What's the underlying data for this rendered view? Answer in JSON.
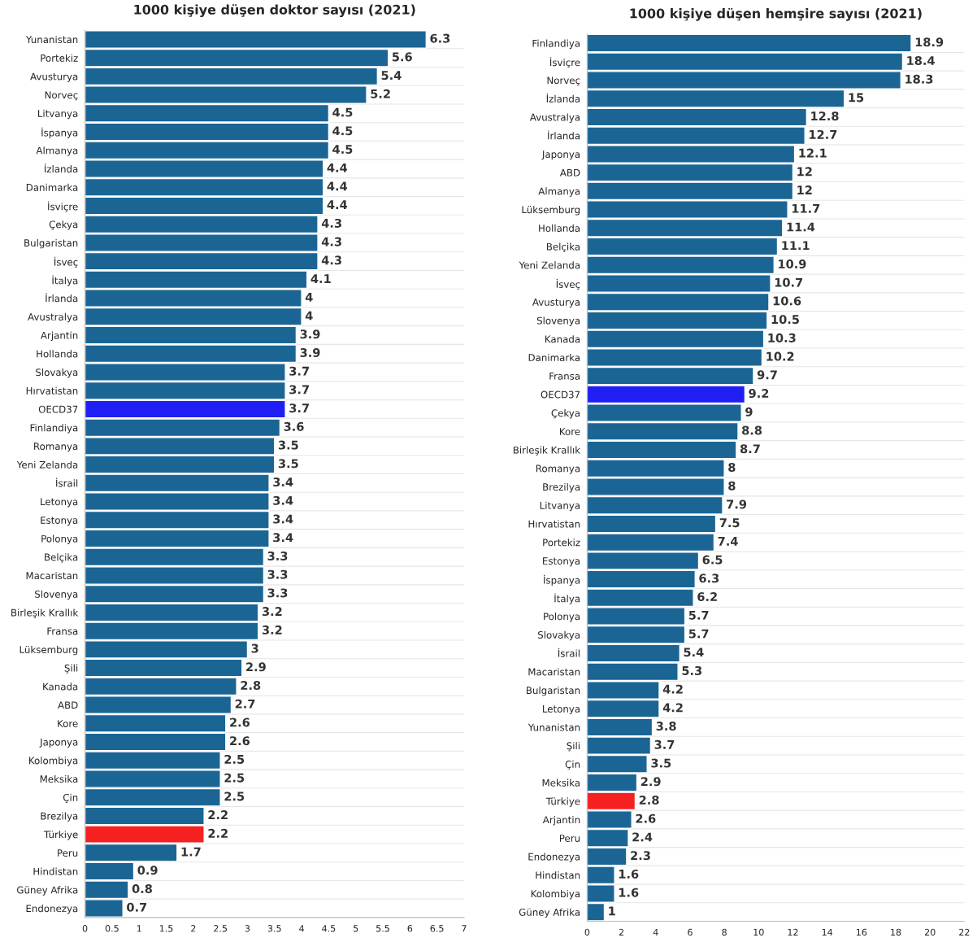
{
  "chart_data": [
    {
      "type": "bar",
      "orientation": "horizontal",
      "title": "1000 kişiye düşen doktor sayısı (2021)",
      "categories": [
        "Yunanistan",
        "Portekiz",
        "Avusturya",
        "Norveç",
        "Litvanya",
        "İspanya",
        "Almanya",
        "İzlanda",
        "Danimarka",
        "İsviçre",
        "Çekya",
        "Bulgaristan",
        "İsveç",
        "İtalya",
        "İrlanda",
        "Avustralya",
        "Arjantin",
        "Hollanda",
        "Slovakya",
        "Hırvatistan",
        "OECD37",
        "Finlandiya",
        "Romanya",
        "Yeni Zelanda",
        "İsrail",
        "Letonya",
        "Estonya",
        "Polonya",
        "Belçika",
        "Macaristan",
        "Slovenya",
        "Birleşik Krallık",
        "Fransa",
        "Lüksemburg",
        "Şili",
        "Kanada",
        "ABD",
        "Kore",
        "Japonya",
        "Kolombiya",
        "Meksika",
        "Çin",
        "Brezilya",
        "Türkiye",
        "Peru",
        "Hindistan",
        "Güney Afrika",
        "Endonezya"
      ],
      "values": [
        6.3,
        5.6,
        5.4,
        5.2,
        4.5,
        4.5,
        4.5,
        4.4,
        4.4,
        4.4,
        4.3,
        4.3,
        4.3,
        4.1,
        4,
        4,
        3.9,
        3.9,
        3.7,
        3.7,
        3.7,
        3.6,
        3.5,
        3.5,
        3.4,
        3.4,
        3.4,
        3.4,
        3.3,
        3.3,
        3.3,
        3.2,
        3.2,
        3,
        2.9,
        2.8,
        2.7,
        2.6,
        2.6,
        2.5,
        2.5,
        2.5,
        2.2,
        2.2,
        1.7,
        0.9,
        0.8,
        0.7
      ],
      "colors": [
        "#1b6595",
        "#1b6595",
        "#1b6595",
        "#1b6595",
        "#1b6595",
        "#1b6595",
        "#1b6595",
        "#1b6595",
        "#1b6595",
        "#1b6595",
        "#1b6595",
        "#1b6595",
        "#1b6595",
        "#1b6595",
        "#1b6595",
        "#1b6595",
        "#1b6595",
        "#1b6595",
        "#1b6595",
        "#1b6595",
        "#1f1ff5",
        "#1b6595",
        "#1b6595",
        "#1b6595",
        "#1b6595",
        "#1b6595",
        "#1b6595",
        "#1b6595",
        "#1b6595",
        "#1b6595",
        "#1b6595",
        "#1b6595",
        "#1b6595",
        "#1b6595",
        "#1b6595",
        "#1b6595",
        "#1b6595",
        "#1b6595",
        "#1b6595",
        "#1b6595",
        "#1b6595",
        "#1b6595",
        "#1b6595",
        "#f52020",
        "#1b6595",
        "#1b6595",
        "#1b6595",
        "#1b6595"
      ],
      "xlim": [
        0,
        7
      ],
      "xticks": [
        0,
        0.5,
        1,
        1.5,
        2,
        2.5,
        3,
        3.5,
        4,
        4.5,
        5,
        5.5,
        6,
        6.5,
        7
      ],
      "data_labels": true,
      "grid": "y"
    },
    {
      "type": "bar",
      "orientation": "horizontal",
      "title": "1000 kişiye düşen hemşire sayısı (2021)",
      "categories": [
        "Finlandiya",
        "İsviçre",
        "Norveç",
        "İzlanda",
        "Avustralya",
        "İrlanda",
        "Japonya",
        "ABD",
        "Almanya",
        "Lüksemburg",
        "Hollanda",
        "Belçika",
        "Yeni Zelanda",
        "İsveç",
        "Avusturya",
        "Slovenya",
        "Kanada",
        "Danimarka",
        "Fransa",
        "OECD37",
        "Çekya",
        "Kore",
        "Birleşik Krallık",
        "Romanya",
        "Brezilya",
        "Litvanya",
        "Hırvatistan",
        "Portekiz",
        "Estonya",
        "İspanya",
        "İtalya",
        "Polonya",
        "Slovakya",
        "İsrail",
        "Macaristan",
        "Bulgaristan",
        "Letonya",
        "Yunanistan",
        "Şili",
        "Çin",
        "Meksika",
        "Türkiye",
        "Arjantin",
        "Peru",
        "Endonezya",
        "Hindistan",
        "Kolombiya",
        "Güney Afrika"
      ],
      "values": [
        18.9,
        18.4,
        18.3,
        15,
        12.8,
        12.7,
        12.1,
        12,
        12,
        11.7,
        11.4,
        11.1,
        10.9,
        10.7,
        10.6,
        10.5,
        10.3,
        10.2,
        9.7,
        9.2,
        9,
        8.8,
        8.7,
        8,
        8,
        7.9,
        7.5,
        7.4,
        6.5,
        6.3,
        6.2,
        5.7,
        5.7,
        5.4,
        5.3,
        4.2,
        4.2,
        3.8,
        3.7,
        3.5,
        2.9,
        2.8,
        2.6,
        2.4,
        2.3,
        1.6,
        1.6,
        1
      ],
      "colors": [
        "#1b6595",
        "#1b6595",
        "#1b6595",
        "#1b6595",
        "#1b6595",
        "#1b6595",
        "#1b6595",
        "#1b6595",
        "#1b6595",
        "#1b6595",
        "#1b6595",
        "#1b6595",
        "#1b6595",
        "#1b6595",
        "#1b6595",
        "#1b6595",
        "#1b6595",
        "#1b6595",
        "#1b6595",
        "#1f1ff5",
        "#1b6595",
        "#1b6595",
        "#1b6595",
        "#1b6595",
        "#1b6595",
        "#1b6595",
        "#1b6595",
        "#1b6595",
        "#1b6595",
        "#1b6595",
        "#1b6595",
        "#1b6595",
        "#1b6595",
        "#1b6595",
        "#1b6595",
        "#1b6595",
        "#1b6595",
        "#1b6595",
        "#1b6595",
        "#1b6595",
        "#1b6595",
        "#f52020",
        "#1b6595",
        "#1b6595",
        "#1b6595",
        "#1b6595",
        "#1b6595",
        "#1b6595"
      ],
      "xlim": [
        0,
        22
      ],
      "xticks": [
        0,
        2,
        4,
        6,
        8,
        10,
        12,
        14,
        16,
        18,
        20,
        22
      ],
      "data_labels": true,
      "grid": "y"
    }
  ]
}
